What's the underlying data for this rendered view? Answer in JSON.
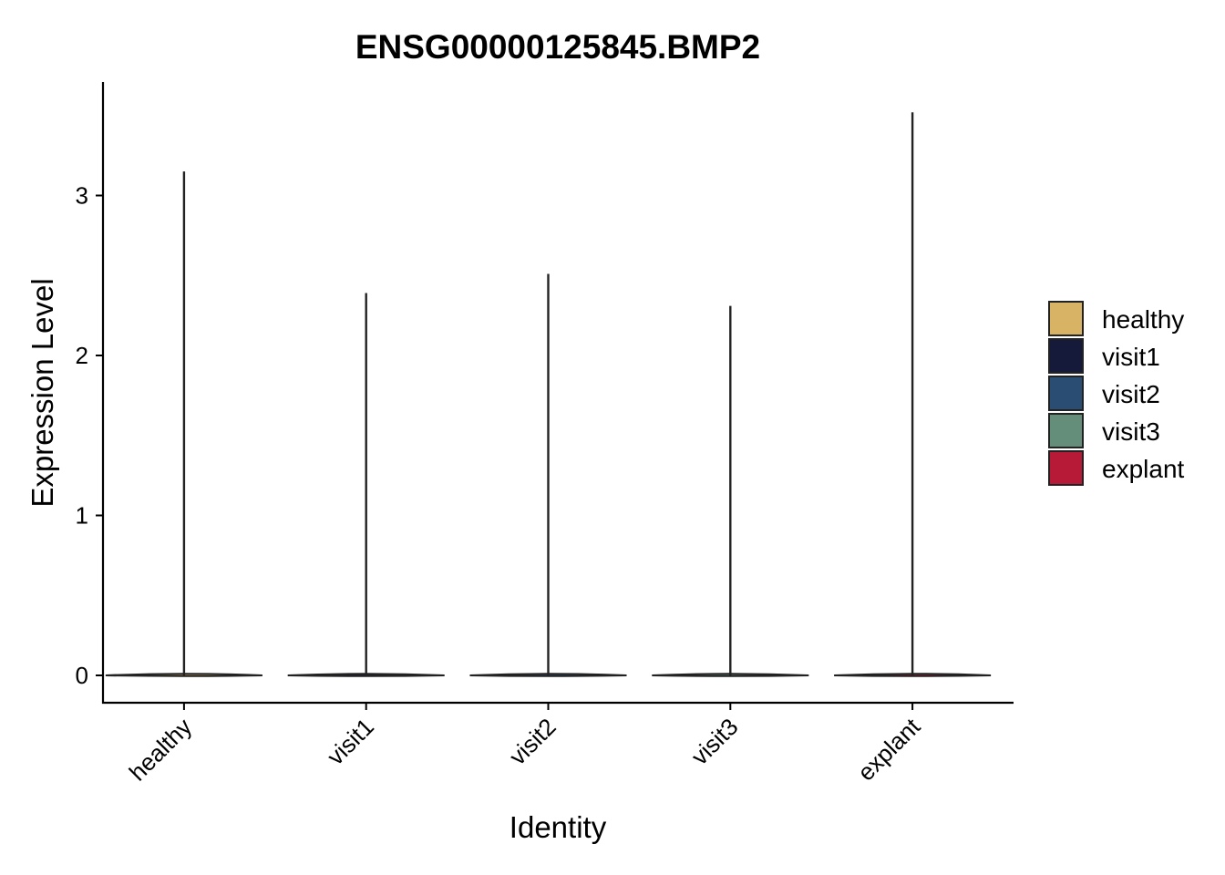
{
  "chart_data": {
    "type": "violin",
    "title": "ENSG00000125845.BMP2",
    "xlabel": "Identity",
    "ylabel": "Expression Level",
    "categories": [
      "healthy",
      "visit1",
      "visit2",
      "visit3",
      "explant"
    ],
    "max_values": [
      3.15,
      2.39,
      2.51,
      2.31,
      3.52
    ],
    "min_values": [
      0,
      0,
      0,
      0,
      0
    ],
    "ylim": [
      -0.16,
      3.7
    ],
    "yticks": [
      0,
      1,
      2,
      3
    ],
    "colors": [
      "#D8B365",
      "#151A3A",
      "#2A4D73",
      "#658E7A",
      "#B61A36"
    ],
    "legend": {
      "position": "right",
      "entries": [
        "healthy",
        "visit1",
        "visit2",
        "visit3",
        "explant"
      ]
    },
    "grid": false
  }
}
